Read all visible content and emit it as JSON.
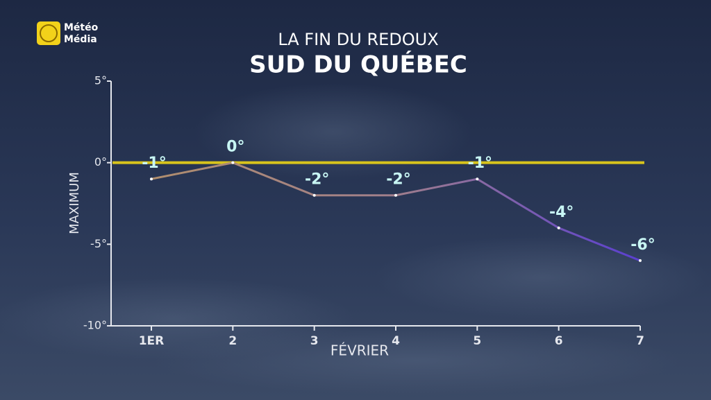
{
  "logo_text": [
    "Météo",
    "Média"
  ],
  "chart_data": {
    "type": "line",
    "title": "LA FIN DU REDOUX",
    "subtitle": "SUD DU QUÉBEC",
    "x_label": "FÉVRIER",
    "y_label": "MAXIMUM",
    "categories": [
      "1ER",
      "2",
      "3",
      "4",
      "5",
      "6",
      "7"
    ],
    "values": [
      -1,
      0,
      -2,
      -2,
      -1,
      -4,
      -6
    ],
    "value_labels": [
      "-1°",
      "0°",
      "-2°",
      "-2°",
      "-1°",
      "-4°",
      "-6°"
    ],
    "colors": [
      "#b08e6e",
      "#a07e8c",
      "#5a3fd0"
    ],
    "ylim": [
      -10,
      5
    ],
    "yticks": [
      {
        "value": 5,
        "label": "5°"
      },
      {
        "value": 0,
        "label": "0°"
      },
      {
        "value": -5,
        "label": "-5°"
      },
      {
        "value": -10,
        "label": "-10°"
      }
    ],
    "reference_line": {
      "value": 0,
      "color": "#d8c41c"
    }
  }
}
